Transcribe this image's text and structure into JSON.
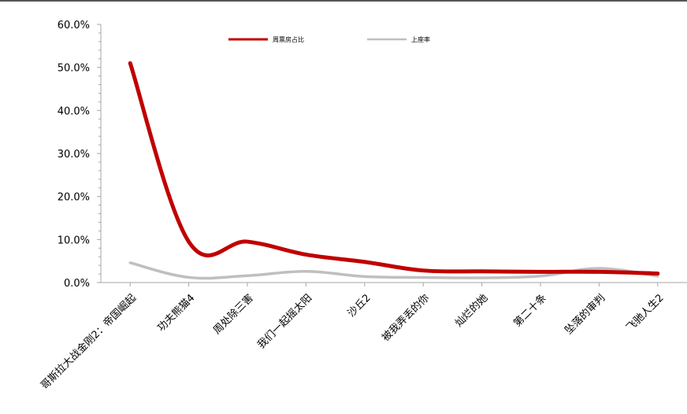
{
  "chart_data": {
    "type": "line",
    "title": "",
    "xlabel": "",
    "ylabel": "",
    "ylim": [
      0,
      60
    ],
    "y_ticks": [
      "0.0%",
      "10.0%",
      "20.0%",
      "30.0%",
      "40.0%",
      "50.0%",
      "60.0%"
    ],
    "y_tick_values": [
      0,
      10,
      20,
      30,
      40,
      50,
      60
    ],
    "grid": false,
    "legend_position": "top-center",
    "smooth": true,
    "categories": [
      "哥斯拉大战金刚2：帝国崛起",
      "功夫熊猫4",
      "周处除三害",
      "我们一起摇太阳",
      "沙丘2",
      "被我弄丢的你",
      "灿烂的她",
      "第二十条",
      "坠落的审判",
      "飞驰人生2"
    ],
    "series": [
      {
        "name": "周票房占比",
        "color": "#c00000",
        "values": [
          51.0,
          9.5,
          9.5,
          6.5,
          4.8,
          2.8,
          2.6,
          2.5,
          2.5,
          2.1
        ]
      },
      {
        "name": "上座率",
        "color": "#bfbfbf",
        "values": [
          4.6,
          1.2,
          1.6,
          2.6,
          1.4,
          1.2,
          1.1,
          1.5,
          3.3,
          1.5
        ]
      }
    ]
  }
}
